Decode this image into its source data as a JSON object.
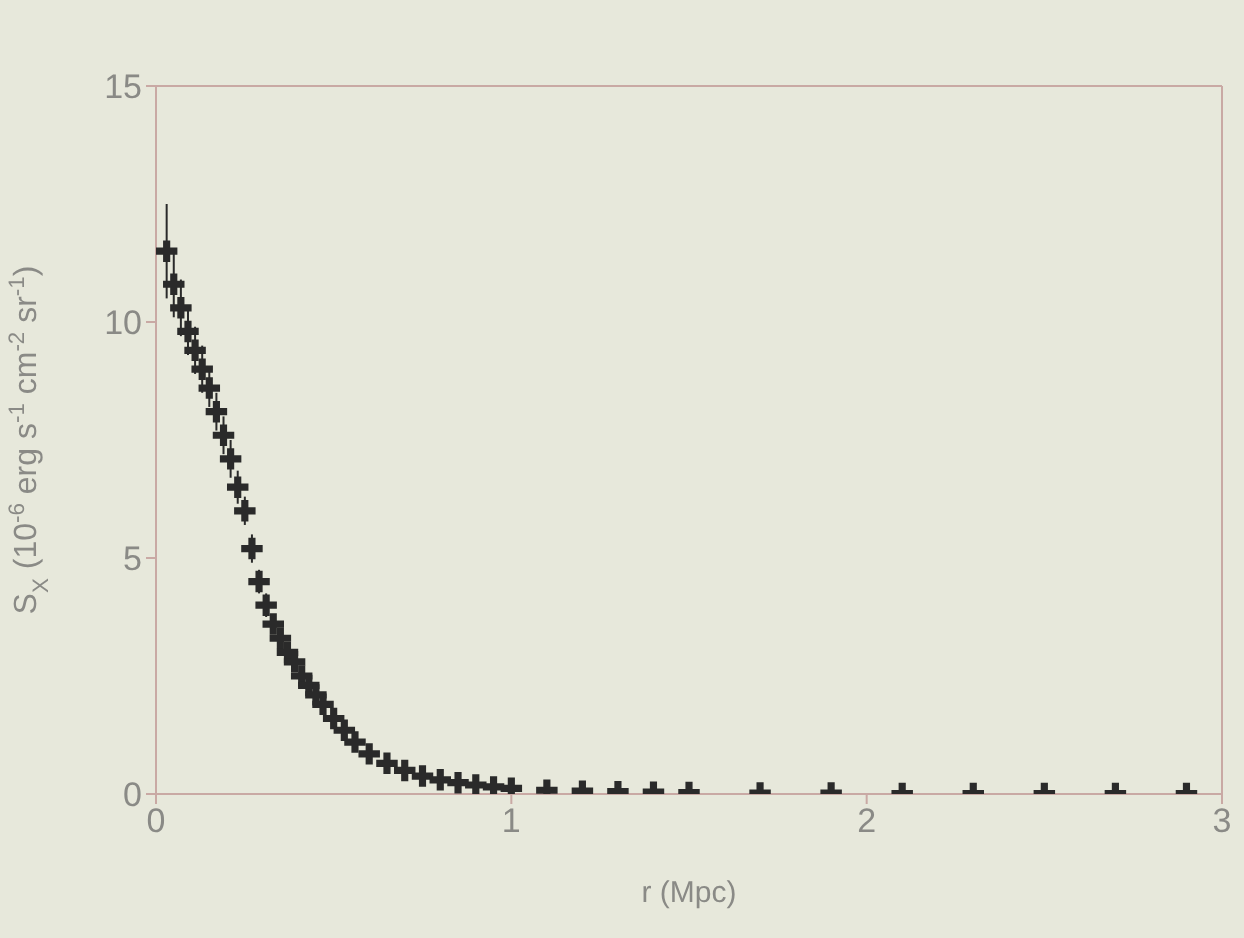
{
  "chart_data": {
    "type": "scatter",
    "xlabel": "r (Mpc)",
    "ylabel": "S$_{X}$ (10$^{-6}$ erg s$^{-1}$ cm$^{-2}$ sr$^{-1}$)",
    "xlim": [
      0,
      3
    ],
    "xticks": [
      0,
      1,
      2,
      3
    ],
    "ylim": [
      0,
      15
    ],
    "yticks": [
      0,
      5,
      10,
      15
    ],
    "legend": false,
    "marker": "cross",
    "series": [
      {
        "color": "#2a2a2a",
        "x": [
          0.03,
          0.05,
          0.07,
          0.09,
          0.11,
          0.13,
          0.15,
          0.17,
          0.19,
          0.21,
          0.23,
          0.25,
          0.27,
          0.29,
          0.31,
          0.33,
          0.35,
          0.37,
          0.39,
          0.41,
          0.43,
          0.45,
          0.47,
          0.5,
          0.53,
          0.56,
          0.6,
          0.65,
          0.7,
          0.75,
          0.8,
          0.85,
          0.9,
          0.95,
          1.0,
          1.1,
          1.2,
          1.3,
          1.4,
          1.5,
          1.7,
          1.9,
          2.1,
          2.3,
          2.5,
          2.7,
          2.9
        ],
        "values": [
          11.5,
          10.8,
          10.3,
          9.8,
          9.4,
          9.0,
          8.6,
          8.1,
          7.6,
          7.1,
          6.5,
          6.0,
          5.2,
          4.5,
          4.0,
          3.6,
          3.3,
          3.0,
          2.8,
          2.5,
          2.3,
          2.1,
          1.9,
          1.6,
          1.35,
          1.1,
          0.85,
          0.65,
          0.5,
          0.38,
          0.3,
          0.24,
          0.19,
          0.15,
          0.12,
          0.08,
          0.06,
          0.05,
          0.04,
          0.03,
          0.02,
          0.02,
          0.01,
          0.01,
          0.01,
          0.01,
          0.01
        ],
        "errors": [
          1.0,
          0.7,
          0.6,
          0.5,
          0.5,
          0.5,
          0.4,
          0.4,
          0.4,
          0.4,
          0.35,
          0.3,
          0.3,
          0.25,
          0.25,
          0.2,
          0.2,
          0.2,
          0.2,
          0.15,
          0.15,
          0.15,
          0.1,
          0.1,
          0.1,
          0.1,
          0.1,
          0.05,
          0.05,
          null,
          null,
          null,
          null,
          null,
          null,
          null,
          null,
          null,
          null,
          null,
          null,
          null,
          null,
          null,
          null,
          null,
          null
        ]
      }
    ]
  }
}
